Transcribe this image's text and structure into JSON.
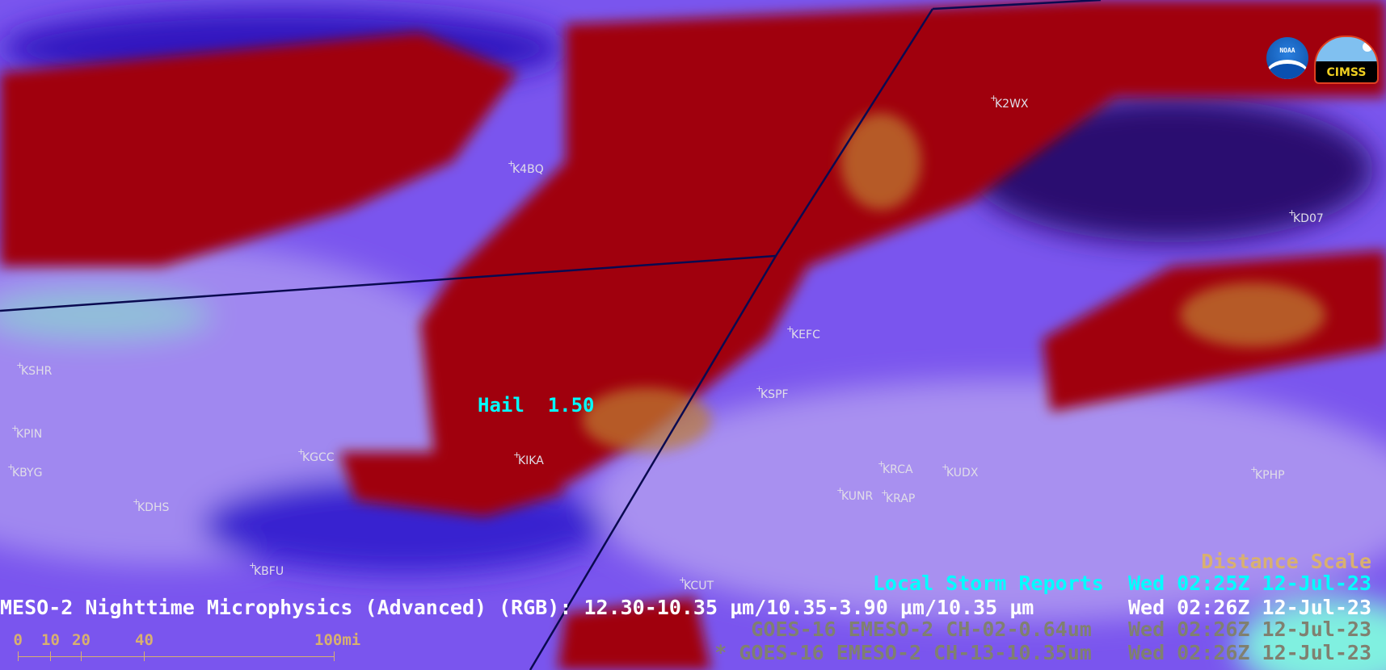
{
  "overlay": {
    "distance_scale_title": "Distance Scale",
    "lsr_label": "Local Storm Reports",
    "lsr_time": "Wed 02:25Z 12-Jul-23",
    "product_title": "MESO-2 Nighttime Microphysics (Advanced) (RGB): 12.30-10.35 µm/10.35-3.90 µm/10.35 µm",
    "product_time": "Wed 02:26Z 12-Jul-23",
    "layer1_label": "GOES-16 EMESO-2 CH-02-0.64um",
    "layer1_time": "Wed 02:26Z 12-Jul-23",
    "layer2_marker": "*",
    "layer2_label": "GOES-16 EMESO-2 CH-13-10.35um",
    "layer2_time": "Wed 02:26Z 12-Jul-23"
  },
  "scale_bar": {
    "ticks": [
      "0",
      "10",
      "20",
      "40",
      "100mi"
    ]
  },
  "storm_report": {
    "type": "Hail",
    "value": "1.50"
  },
  "stations": [
    "K4BQ",
    "K2WX",
    "KD07",
    "KEFC",
    "KSPF",
    "KSHR",
    "KPIN",
    "KBYG",
    "KGCC",
    "KIKA",
    "KDHS",
    "KBFU",
    "KCUT",
    "KRCA",
    "KUDX",
    "KPHP",
    "KUNR",
    "KRAP"
  ],
  "logos": {
    "noaa": "NOAA",
    "cimss": "CIMSS"
  },
  "colors": {
    "cyan": "#00ffff",
    "gold": "#d8b070",
    "gray": "#808070",
    "border": "#0a0a50",
    "cloud_red": "#a00010"
  }
}
